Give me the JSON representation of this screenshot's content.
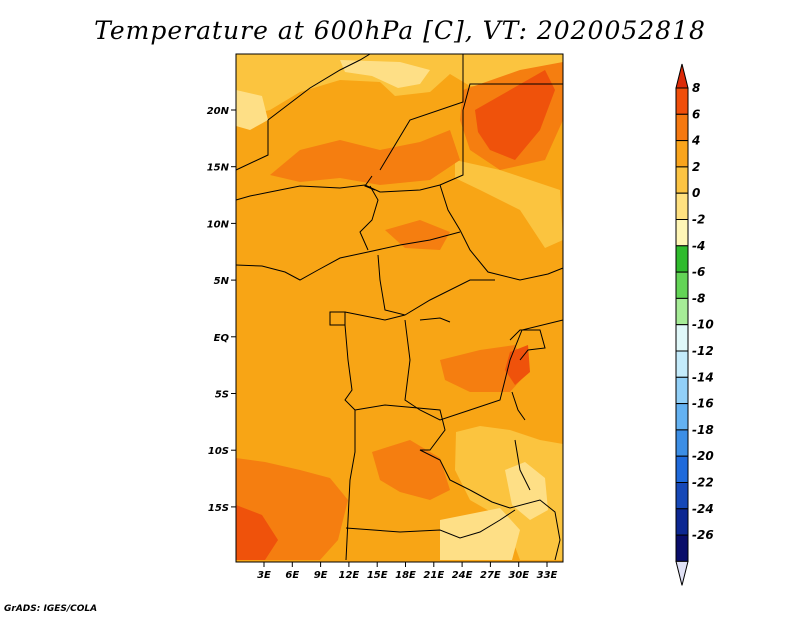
{
  "title": "Temperature at 600hPa [C], VT: 2020052818",
  "credit": "GrADS: IGES/COLA",
  "map": {
    "lon_labels": [
      "3E",
      "6E",
      "9E",
      "12E",
      "15E",
      "18E",
      "21E",
      "24E",
      "27E",
      "30E",
      "33E"
    ],
    "lat_labels": [
      "20N",
      "15N",
      "10N",
      "5N",
      "EQ",
      "5S",
      "10S",
      "15S"
    ]
  },
  "colorbar": {
    "levels": [
      "8",
      "6",
      "4",
      "2",
      "0",
      "-2",
      "-4",
      "-6",
      "-8",
      "-10",
      "-12",
      "-14",
      "-16",
      "-18",
      "-20",
      "-22",
      "-24",
      "-26"
    ],
    "colors": [
      "#dc2a08",
      "#f04e0a",
      "#f57810",
      "#f9a41c",
      "#fcc443",
      "#ffe180",
      "#fff6b6",
      "#2fbb2d",
      "#63d456",
      "#a6ec97",
      "#e0f8f9",
      "#c4ebfb",
      "#92d0f8",
      "#64b2f2",
      "#3c8ee5",
      "#1f6adb",
      "#1648b7",
      "#0c2792",
      "#090d6a",
      "#e0e1f5"
    ]
  },
  "legend_colors": {
    "bg": "#f8a515",
    "warm": "#f57e10",
    "hot": "#ef520b",
    "cool": "#fbc43f",
    "coolest": "#fedf86"
  }
}
